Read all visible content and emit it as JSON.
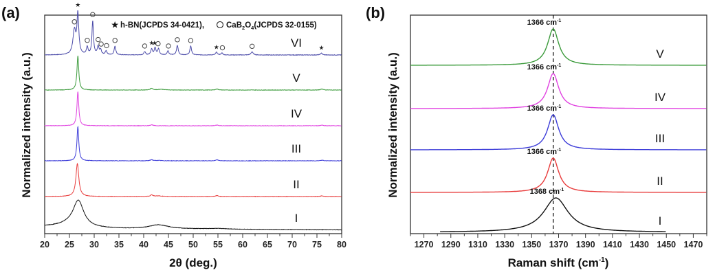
{
  "chart_data": [
    {
      "panel_label": "(a)",
      "type": "line",
      "title": "",
      "xlabel": "2θ (deg.)",
      "ylabel": "Normalized intensity (a.u.)",
      "xlim": [
        20,
        80
      ],
      "xticks": [
        20,
        25,
        30,
        35,
        40,
        45,
        50,
        55,
        60,
        65,
        70,
        75,
        80
      ],
      "grid": false,
      "legend": {
        "placement": "top-right",
        "entries": [
          {
            "marker": "★",
            "text": "h-BN(JCPDS 34-0421),"
          },
          {
            "marker": "○",
            "text": "CaB2O4(JCPDS 32-0155)"
          }
        ]
      },
      "series": [
        {
          "name": "VI",
          "color": "#4a4aa8",
          "offset": 5,
          "peaks": [
            [
              26.0,
              0.6,
              0.35
            ],
            [
              26.7,
              1.0,
              0.22
            ],
            [
              28.6,
              0.18,
              0.2
            ],
            [
              29.7,
              0.85,
              0.18
            ],
            [
              30.8,
              0.2,
              0.2
            ],
            [
              31.3,
              0.12,
              0.2
            ],
            [
              32.4,
              0.1,
              0.2
            ],
            [
              34.2,
              0.22,
              0.2
            ],
            [
              40.2,
              0.08,
              0.2
            ],
            [
              41.6,
              0.15,
              0.2
            ],
            [
              42.3,
              0.18,
              0.2
            ],
            [
              43.0,
              0.15,
              0.2
            ],
            [
              44.9,
              0.1,
              0.2
            ],
            [
              46.8,
              0.24,
              0.2
            ],
            [
              49.5,
              0.22,
              0.2
            ],
            [
              54.7,
              0.07,
              0.2
            ],
            [
              55.8,
              0.05,
              0.2
            ],
            [
              61.9,
              0.08,
              0.25
            ],
            [
              75.9,
              0.05,
              0.2
            ]
          ],
          "markers": [
            {
              "x": 26.0,
              "symbol": "○"
            },
            {
              "x": 26.7,
              "symbol": "★"
            },
            {
              "x": 28.6,
              "symbol": "○"
            },
            {
              "x": 29.7,
              "symbol": "○"
            },
            {
              "x": 30.8,
              "symbol": "○"
            },
            {
              "x": 31.4,
              "symbol": "○"
            },
            {
              "x": 32.5,
              "symbol": "○"
            },
            {
              "x": 34.2,
              "symbol": "○"
            },
            {
              "x": 40.2,
              "symbol": "○"
            },
            {
              "x": 41.6,
              "symbol": "★"
            },
            {
              "x": 42.2,
              "symbol": "★"
            },
            {
              "x": 42.9,
              "symbol": "○"
            },
            {
              "x": 45.0,
              "symbol": "○"
            },
            {
              "x": 46.8,
              "symbol": "○"
            },
            {
              "x": 49.5,
              "symbol": "○"
            },
            {
              "x": 54.7,
              "symbol": "★"
            },
            {
              "x": 55.9,
              "symbol": "○"
            },
            {
              "x": 61.9,
              "symbol": "○"
            },
            {
              "x": 75.9,
              "symbol": "★"
            }
          ]
        },
        {
          "name": "V",
          "color": "#3a9a3a",
          "offset": 4,
          "peaks": [
            [
              26.7,
              1.0,
              0.22
            ],
            [
              41.6,
              0.05,
              0.3
            ],
            [
              43.5,
              0.02,
              0.8
            ],
            [
              54.8,
              0.03,
              0.3
            ],
            [
              76.0,
              0.03,
              0.3
            ]
          ]
        },
        {
          "name": "IV",
          "color": "#e040e0",
          "offset": 3,
          "peaks": [
            [
              26.7,
              1.0,
              0.22
            ],
            [
              41.6,
              0.03,
              0.3
            ],
            [
              54.8,
              0.02,
              0.3
            ],
            [
              76.0,
              0.02,
              0.3
            ]
          ]
        },
        {
          "name": "III",
          "color": "#3a3ad8",
          "offset": 2,
          "peaks": [
            [
              26.7,
              1.0,
              0.22
            ],
            [
              41.6,
              0.03,
              0.3
            ],
            [
              43.0,
              0.01,
              0.8
            ],
            [
              54.8,
              0.03,
              0.3
            ],
            [
              76.0,
              0.02,
              0.3
            ]
          ]
        },
        {
          "name": "II",
          "color": "#e83a3a",
          "offset": 1,
          "peaks": [
            [
              26.6,
              1.0,
              0.35
            ],
            [
              41.6,
              0.05,
              0.3
            ],
            [
              43.0,
              0.02,
              0.8
            ],
            [
              54.8,
              0.03,
              0.3
            ],
            [
              76.0,
              0.02,
              0.3
            ]
          ]
        },
        {
          "name": "I",
          "color": "#111111",
          "offset": 0,
          "peaks": [
            [
              26.8,
              0.75,
              1.3
            ],
            [
              25.0,
              0.08,
              3.0
            ],
            [
              43.0,
              0.12,
              2.5
            ],
            [
              55.0,
              0.02,
              3.0
            ]
          ],
          "background": [
            [
              20,
              0.1
            ],
            [
              30,
              0.05
            ],
            [
              40,
              0.03
            ],
            [
              50,
              0.03
            ],
            [
              60,
              0.02
            ],
            [
              80,
              0.01
            ]
          ]
        }
      ]
    },
    {
      "panel_label": "(b)",
      "type": "line",
      "title": "",
      "xlabel": "Raman shift (cm-1)",
      "xlabel_main": "Raman shift (cm",
      "xlabel_sup": "-1",
      "xlabel_end": ")",
      "ylabel": "Normalized intensity (a.u.)",
      "xlim": [
        1260,
        1480
      ],
      "xticks": [
        1270,
        1290,
        1310,
        1330,
        1350,
        1370,
        1390,
        1410,
        1430,
        1450,
        1470
      ],
      "grid": false,
      "reference_line": {
        "x": 1366,
        "style": "dashed"
      },
      "series": [
        {
          "name": "V",
          "color": "#3a9a3a",
          "offset": 4,
          "peak_position": 1366,
          "fwhm": 10,
          "label": "1366",
          "unit": "cm",
          "unit_sup": "-1"
        },
        {
          "name": "IV",
          "color": "#e040e0",
          "offset": 3,
          "peak_position": 1366,
          "fwhm": 10,
          "label": "1366",
          "unit": "cm",
          "unit_sup": "-1"
        },
        {
          "name": "III",
          "color": "#3a3ad8",
          "offset": 2,
          "peak_position": 1366,
          "fwhm": 10,
          "label": "1366",
          "unit": "cm",
          "unit_sup": "-1"
        },
        {
          "name": "II",
          "color": "#e83a3a",
          "offset": 1,
          "peak_position": 1366,
          "fwhm": 10,
          "label": "1366",
          "unit": "cm",
          "unit_sup": "-1"
        },
        {
          "name": "I",
          "color": "#111111",
          "offset": 0,
          "peak_position": 1368,
          "fwhm": 22,
          "label": "1368",
          "unit": "cm",
          "unit_sup": "-1"
        }
      ]
    }
  ]
}
